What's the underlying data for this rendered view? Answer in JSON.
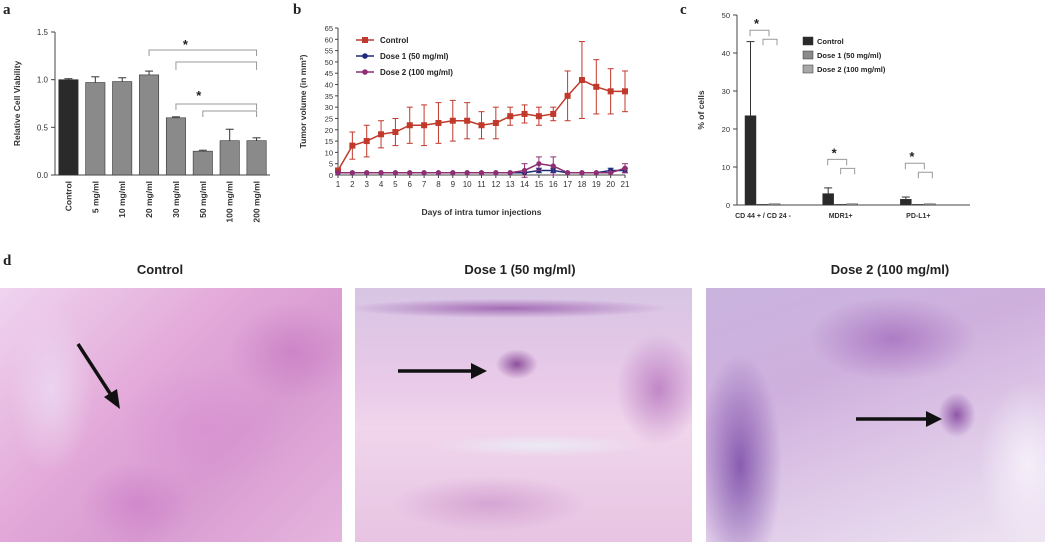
{
  "panels": {
    "a": "a",
    "b": "b",
    "c": "c",
    "d": "d"
  },
  "colors": {
    "dark": "#2a2a2a",
    "mid": "#8a8a8a",
    "light": "#a8a8a8",
    "control_red": "#c0392b",
    "dose1_blue": "#1f2a7a",
    "dose2_purple": "#8e2f73",
    "errbar": "#555555",
    "tissue_base": "#e9b7dc",
    "tissue_dark": "#9e4fa6"
  },
  "chart_data": [
    {
      "id": "a",
      "type": "bar",
      "ylabel": "Relative Cell Viability",
      "ylim": [
        0,
        1.5
      ],
      "yticks": [
        "0.0",
        "0.5",
        "1.0",
        "1.5"
      ],
      "categories": [
        "Control",
        "5 mg/ml",
        "10 mg/ml",
        "20 mg/ml",
        "30 mg/ml",
        "50 mg/ml",
        "100 mg/ml",
        "200 mg/ml"
      ],
      "values": [
        1.0,
        0.97,
        0.98,
        1.05,
        0.6,
        0.25,
        0.36,
        0.36
      ],
      "errors": [
        0.01,
        0.06,
        0.04,
        0.04,
        0.01,
        0.01,
        0.12,
        0.03
      ],
      "bar_colors": [
        "#2a2a2a",
        "#8a8a8a",
        "#8a8a8a",
        "#8a8a8a",
        "#8a8a8a",
        "#8a8a8a",
        "#8a8a8a",
        "#8a8a8a"
      ],
      "annotations": [
        "*",
        "*"
      ]
    },
    {
      "id": "b",
      "type": "line",
      "xlabel": "Days of intra tumor injections",
      "ylabel": "Tumor volume (in mm³)",
      "ylim": [
        0,
        65
      ],
      "yticks": [
        "0",
        "5",
        "10",
        "15",
        "20",
        "25",
        "30",
        "35",
        "40",
        "45",
        "50",
        "55",
        "60",
        "65"
      ],
      "x": [
        1,
        2,
        3,
        4,
        5,
        6,
        7,
        8,
        9,
        10,
        11,
        12,
        13,
        14,
        15,
        16,
        17,
        18,
        19,
        20,
        21
      ],
      "legend_position": "top-left",
      "series": [
        {
          "name": "Control",
          "color": "#c0392b",
          "values": [
            2,
            13,
            15,
            18,
            19,
            22,
            22,
            23,
            24,
            24,
            22,
            23,
            26,
            27,
            26,
            27,
            35,
            42,
            39,
            37,
            37
          ],
          "errors": [
            0,
            6,
            7,
            6,
            6,
            8,
            9,
            9,
            9,
            8,
            6,
            7,
            4,
            4,
            4,
            3,
            11,
            17,
            12,
            10,
            9
          ]
        },
        {
          "name": "Dose 1 (50 mg/ml)",
          "color": "#1f2a7a",
          "values": [
            1,
            1,
            1,
            1,
            1,
            1,
            1,
            1,
            1,
            1,
            1,
            1,
            1,
            1,
            2,
            2,
            1,
            1,
            1,
            2,
            2
          ],
          "errors": [
            0,
            0,
            0,
            0,
            0,
            0,
            0,
            0,
            0,
            0,
            0,
            0,
            0,
            0,
            1,
            1,
            0,
            0,
            0,
            1,
            1
          ]
        },
        {
          "name": "Dose 2 (100 mg/ml)",
          "color": "#8e2f73",
          "values": [
            1,
            1,
            1,
            1,
            1,
            1,
            1,
            1,
            1,
            1,
            1,
            1,
            1,
            2,
            5,
            4,
            1,
            1,
            1,
            1,
            3
          ],
          "errors": [
            0,
            0,
            0,
            0,
            0,
            0,
            0,
            0,
            0,
            0,
            0,
            0,
            0,
            3,
            3,
            4,
            0,
            0,
            0,
            0,
            2
          ]
        }
      ]
    },
    {
      "id": "c",
      "type": "bar",
      "ylabel": "% of cells",
      "ylim": [
        0,
        50
      ],
      "yticks": [
        "0",
        "10",
        "20",
        "30",
        "40",
        "50"
      ],
      "categories": [
        "CD 44 + / CD 24 -",
        "MDR1+",
        "PD-L1+"
      ],
      "legend_position": "top-right",
      "series": [
        {
          "name": "Control",
          "color": "#2a2a2a",
          "values": [
            23.5,
            3.0,
            1.5
          ],
          "errors": [
            19.5,
            1.5,
            0.6
          ]
        },
        {
          "name": "Dose 1 (50 mg/ml)",
          "color": "#8a8a8a",
          "values": [
            0.2,
            0.2,
            0.2
          ],
          "errors": [
            0,
            0,
            0
          ]
        },
        {
          "name": "Dose 2 (100 mg/ml)",
          "color": "#a8a8a8",
          "values": [
            0.3,
            0.3,
            0.3
          ],
          "errors": [
            0,
            0,
            0
          ]
        }
      ],
      "annotations": [
        "*",
        "*",
        "*"
      ]
    }
  ],
  "micrographs": [
    {
      "title": "Control"
    },
    {
      "title": "Dose 1 (50 mg/ml)"
    },
    {
      "title": "Dose 2 (100 mg/ml)"
    }
  ]
}
